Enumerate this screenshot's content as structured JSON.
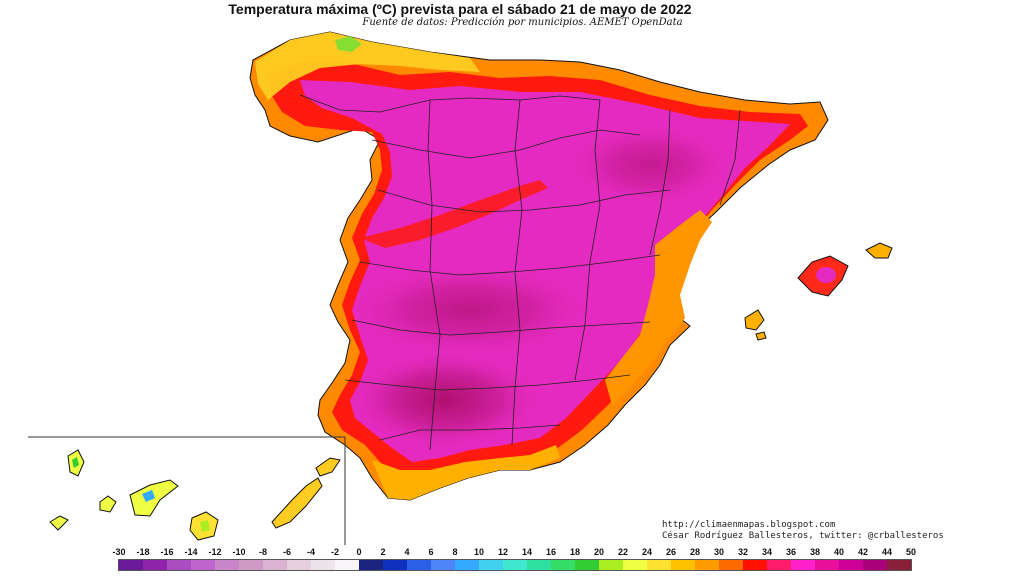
{
  "map": {
    "title": "Temperatura máxima (ºC) prevista para el sábado 21 de mayo de 2022",
    "source": "Fuente de datos: Predicción por municipios. AEMET OpenData",
    "credits": [
      "http://climaenmapas.blogspot.com",
      "César Rodríguez Ballesteros, twitter: @crballesteros"
    ],
    "legend": {
      "ticks": [
        "-30",
        "-18",
        "-16",
        "-14",
        "-12",
        "-10",
        "-8",
        "-6",
        "-4",
        "-2",
        "0",
        "2",
        "4",
        "6",
        "8",
        "10",
        "12",
        "14",
        "16",
        "18",
        "20",
        "22",
        "24",
        "26",
        "28",
        "30",
        "32",
        "34",
        "36",
        "38",
        "40",
        "42",
        "44",
        "50"
      ],
      "colors": [
        "#6a1b9a",
        "#8e24aa",
        "#a94ec0",
        "#bf66cc",
        "#c985c9",
        "#cf9bc6",
        "#d9b3cf",
        "#e6cfdc",
        "#ede4ea",
        "#f7f5f7",
        "#1a237e",
        "#1030c0",
        "#2c5ee8",
        "#4f86f7",
        "#33aaff",
        "#40d0f0",
        "#40e8d0",
        "#2ee0a0",
        "#33dd66",
        "#33cc33",
        "#aaee22",
        "#eeff44",
        "#ffe033",
        "#ffc200",
        "#ff9a00",
        "#ff6a00",
        "#ff1100",
        "#ff1e6e",
        "#ff22cc",
        "#e8109a",
        "#cc0099",
        "#aa0077",
        "#8a1f3a"
      ]
    }
  }
}
